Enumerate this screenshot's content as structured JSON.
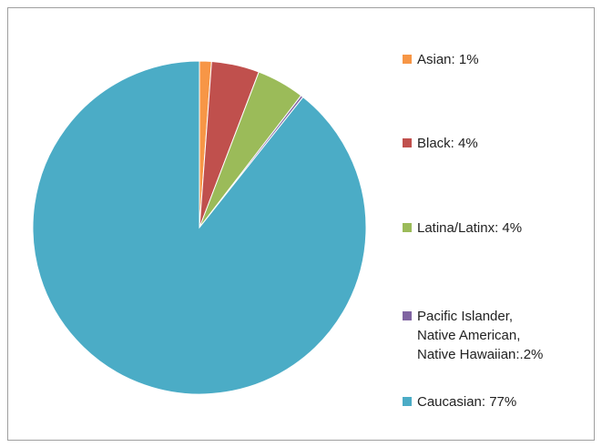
{
  "chart_data": {
    "type": "pie",
    "categories": [
      "Asian",
      "Black",
      "Latina/Latinx",
      "Pacific Islander, Native American, Native Hawaiian",
      "Caucasian"
    ],
    "values": [
      1,
      4,
      4,
      0.2,
      77
    ],
    "legend_labels": [
      [
        "Asian: 1%"
      ],
      [
        "Black: 4%"
      ],
      [
        "Latina/Latinx: 4%"
      ],
      [
        "Pacific Islander,",
        "Native American,",
        "Native Hawaiian:.2%"
      ],
      [
        "Caucasian: 77%"
      ]
    ],
    "colors": [
      "#F79646",
      "#C0504D",
      "#9BBB59",
      "#8064A2",
      "#4BACC6"
    ],
    "legend_position": "right",
    "start_angle": "12 o'clock",
    "direction": "clockwise"
  }
}
